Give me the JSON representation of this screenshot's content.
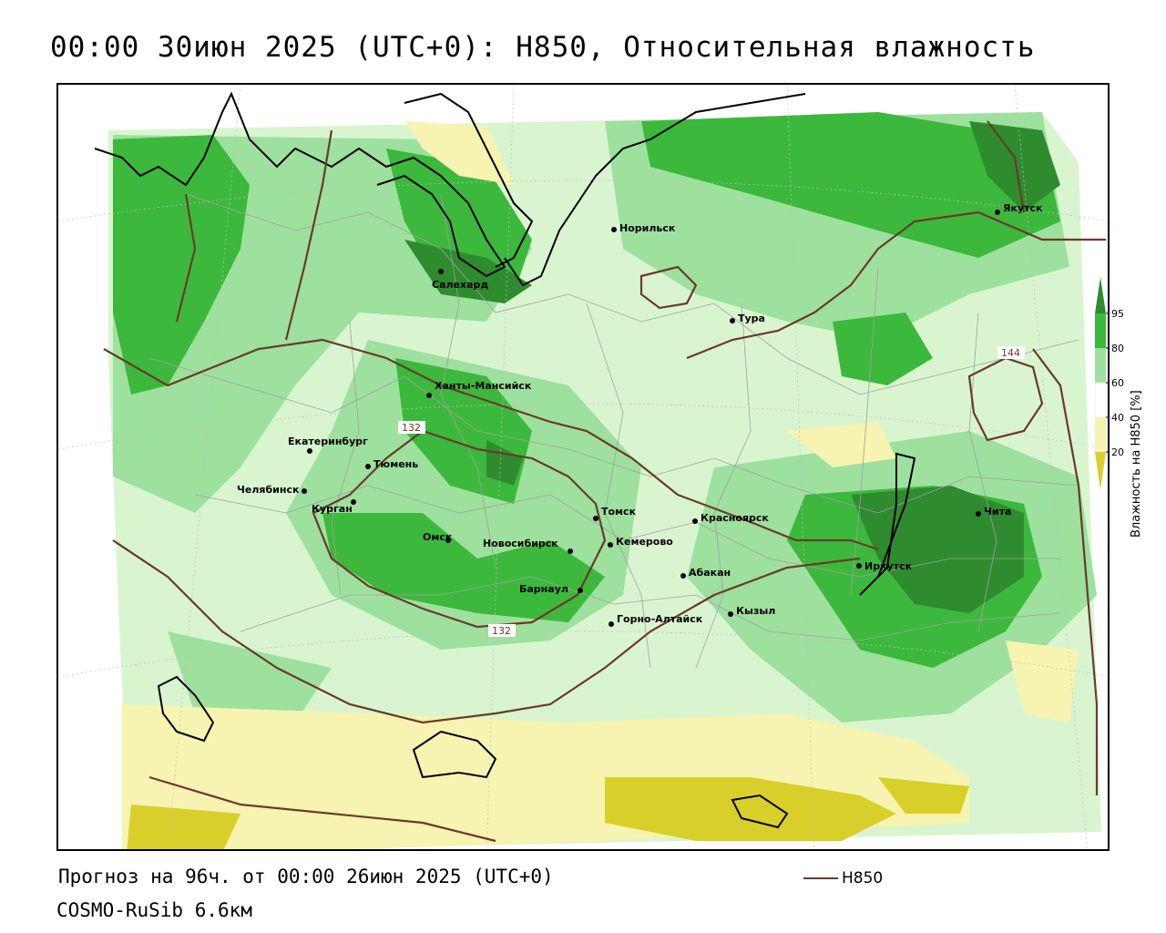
{
  "title": "00:00 30июн 2025 (UTC+0): H850, Относительная влажность",
  "footer": {
    "forecast": "Прогноз на 96ч. от 00:00 26июн 2025 (UTC+0)",
    "model": "COSMO-RuSib 6.6км",
    "line_legend": "H850"
  },
  "legend": {
    "title": "Влажность на H850 [%]",
    "ticks": [
      "95",
      "80",
      "60",
      "40",
      "20"
    ],
    "colors": {
      "very_high": "#2e8b2e",
      "high": "#3cb83c",
      "medium": "#9ee09e",
      "low": "#d9f5d0",
      "dry": "#f7f3b0",
      "very_dry": "#d9cf2a"
    }
  },
  "contours": {
    "color": "#6b3a2a",
    "labels": [
      "132",
      "132",
      "144"
    ]
  },
  "cities": [
    {
      "name": "Якутск"
    },
    {
      "name": "Норильск"
    },
    {
      "name": "Салехард"
    },
    {
      "name": "Тура"
    },
    {
      "name": "Ханты-Мансийск"
    },
    {
      "name": "Екатеринбург"
    },
    {
      "name": "Тюмень"
    },
    {
      "name": "Челябинск"
    },
    {
      "name": "Курган"
    },
    {
      "name": "Омск"
    },
    {
      "name": "Новосибирск"
    },
    {
      "name": "Томск"
    },
    {
      "name": "Кемерово"
    },
    {
      "name": "Барнаул"
    },
    {
      "name": "Красноярск"
    },
    {
      "name": "Абакан"
    },
    {
      "name": "Горно-Алтайск"
    },
    {
      "name": "Кызыл"
    },
    {
      "name": "Иркутск"
    },
    {
      "name": "Чита"
    }
  ]
}
